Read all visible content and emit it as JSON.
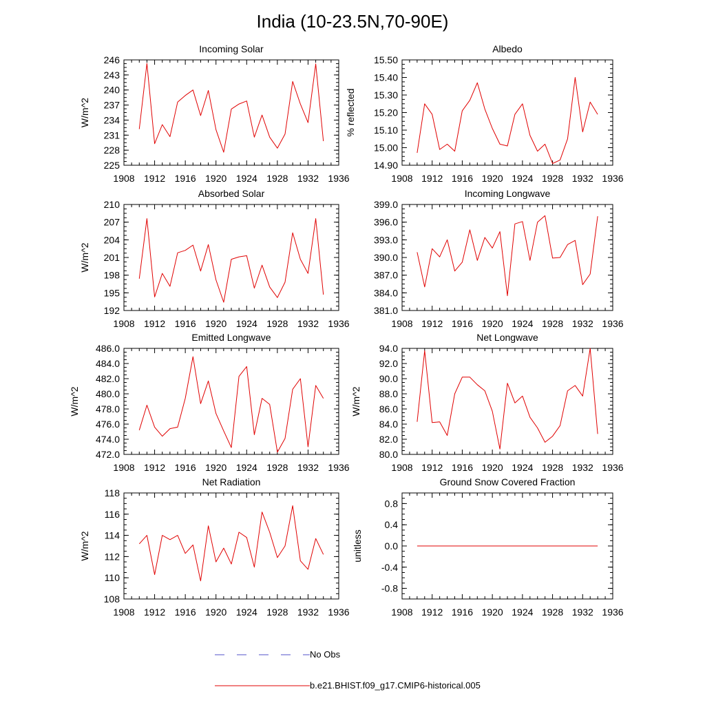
{
  "title": "India (10-23.5N,70-90E)",
  "colors": {
    "model": "#e00000",
    "obs": "#5050c8",
    "axis": "#000000"
  },
  "legend": {
    "items": [
      {
        "label": "No Obs",
        "color": "#5050c8",
        "style": "dashed"
      },
      {
        "label": "b.e21.BHIST.f09_g17.CMIP6-historical.005",
        "color": "#e00000",
        "style": "solid"
      }
    ]
  },
  "chart_data": [
    {
      "type": "line",
      "title": "Incoming Solar",
      "xlabel": "",
      "ylabel": "W/m^2",
      "xlim": [
        1908,
        1936
      ],
      "ylim": [
        225,
        246
      ],
      "x_ticks": [
        "1908",
        "1912",
        "1916",
        "1920",
        "1924",
        "1928",
        "1932",
        "1936"
      ],
      "y_ticks": [
        "225",
        "228",
        "231",
        "234",
        "237",
        "240",
        "243",
        "246"
      ],
      "series": [
        {
          "name": "b.e21.BHIST.f09_g17.CMIP6-historical.005",
          "x": [
            1910,
            1911,
            1912,
            1913,
            1914,
            1915,
            1916,
            1917,
            1918,
            1919,
            1920,
            1921,
            1922,
            1923,
            1924,
            1925,
            1926,
            1927,
            1928,
            1929,
            1930,
            1931,
            1932,
            1933,
            1934
          ],
          "values": [
            232.2,
            245.3,
            229.3,
            233.1,
            230.7,
            237.6,
            238.9,
            240.0,
            234.9,
            239.9,
            232.1,
            227.6,
            236.2,
            237.2,
            237.8,
            230.6,
            235.0,
            230.6,
            228.4,
            231.2,
            241.7,
            237.2,
            233.5,
            245.2,
            229.8
          ]
        }
      ]
    },
    {
      "type": "line",
      "title": "Albedo",
      "xlabel": "",
      "ylabel": "% reflected",
      "xlim": [
        1908,
        1936
      ],
      "ylim": [
        14.9,
        15.5
      ],
      "x_ticks": [
        "1908",
        "1912",
        "1916",
        "1920",
        "1924",
        "1928",
        "1932",
        "1936"
      ],
      "y_ticks": [
        "14.90",
        "15.00",
        "15.10",
        "15.20",
        "15.30",
        "15.40",
        "15.50"
      ],
      "series": [
        {
          "name": "b.e21.BHIST.f09_g17.CMIP6-historical.005",
          "x": [
            1910,
            1911,
            1912,
            1913,
            1914,
            1915,
            1916,
            1917,
            1918,
            1919,
            1920,
            1921,
            1922,
            1923,
            1924,
            1925,
            1926,
            1927,
            1928,
            1929,
            1930,
            1931,
            1932,
            1933,
            1934
          ],
          "values": [
            14.97,
            15.25,
            15.19,
            14.99,
            15.02,
            14.98,
            15.21,
            15.27,
            15.37,
            15.22,
            15.11,
            15.02,
            15.01,
            15.19,
            15.25,
            15.07,
            14.98,
            15.02,
            14.91,
            14.93,
            15.05,
            15.4,
            15.09,
            15.26,
            15.19
          ]
        }
      ]
    },
    {
      "type": "line",
      "title": "Absorbed Solar",
      "xlabel": "",
      "ylabel": "W/m^2",
      "xlim": [
        1908,
        1936
      ],
      "ylim": [
        192,
        210
      ],
      "x_ticks": [
        "1908",
        "1912",
        "1916",
        "1920",
        "1924",
        "1928",
        "1932",
        "1936"
      ],
      "y_ticks": [
        "192",
        "195",
        "198",
        "201",
        "204",
        "207",
        "210"
      ],
      "series": [
        {
          "name": "b.e21.BHIST.f09_g17.CMIP6-historical.005",
          "x": [
            1910,
            1911,
            1912,
            1913,
            1914,
            1915,
            1916,
            1917,
            1918,
            1919,
            1920,
            1921,
            1922,
            1923,
            1924,
            1925,
            1926,
            1927,
            1928,
            1929,
            1930,
            1931,
            1932,
            1933,
            1934
          ],
          "values": [
            197.4,
            207.6,
            194.3,
            198.3,
            196.1,
            201.8,
            202.2,
            203.1,
            198.7,
            203.2,
            197.2,
            193.4,
            200.7,
            201.1,
            201.3,
            195.8,
            199.7,
            196.0,
            194.2,
            196.8,
            205.2,
            200.7,
            198.3,
            207.6,
            194.7
          ]
        }
      ]
    },
    {
      "type": "line",
      "title": "Incoming Longwave",
      "xlabel": "",
      "ylabel": "",
      "xlim": [
        1908,
        1936
      ],
      "ylim": [
        381,
        399
      ],
      "x_ticks": [
        "1908",
        "1912",
        "1916",
        "1920",
        "1924",
        "1928",
        "1932",
        "1936"
      ],
      "y_ticks": [
        "381.0",
        "384.0",
        "387.0",
        "390.0",
        "393.0",
        "396.0",
        "399.0"
      ],
      "series": [
        {
          "name": "b.e21.BHIST.f09_g17.CMIP6-historical.005",
          "x": [
            1910,
            1911,
            1912,
            1913,
            1914,
            1915,
            1916,
            1917,
            1918,
            1919,
            1920,
            1921,
            1922,
            1923,
            1924,
            1925,
            1926,
            1927,
            1928,
            1929,
            1930,
            1931,
            1932,
            1933,
            1934
          ],
          "values": [
            390.9,
            385.0,
            391.5,
            390.1,
            393.0,
            387.7,
            389.2,
            394.7,
            389.5,
            393.4,
            391.6,
            394.4,
            383.5,
            395.7,
            396.1,
            389.5,
            396.0,
            397.1,
            389.9,
            390.0,
            392.2,
            392.9,
            385.4,
            387.2,
            397.0
          ]
        }
      ]
    },
    {
      "type": "line",
      "title": "Emitted Longwave",
      "xlabel": "",
      "ylabel": "W/m^2",
      "xlim": [
        1908,
        1936
      ],
      "ylim": [
        472,
        486
      ],
      "x_ticks": [
        "1908",
        "1912",
        "1916",
        "1920",
        "1924",
        "1928",
        "1932",
        "1936"
      ],
      "y_ticks": [
        "472.0",
        "474.0",
        "476.0",
        "478.0",
        "480.0",
        "482.0",
        "484.0",
        "486.0"
      ],
      "series": [
        {
          "name": "b.e21.BHIST.f09_g17.CMIP6-historical.005",
          "x": [
            1910,
            1911,
            1912,
            1913,
            1914,
            1915,
            1916,
            1917,
            1918,
            1919,
            1920,
            1921,
            1922,
            1923,
            1924,
            1925,
            1926,
            1927,
            1928,
            1929,
            1930,
            1931,
            1932,
            1933,
            1934
          ],
          "values": [
            475.2,
            478.5,
            475.6,
            474.4,
            475.4,
            475.6,
            479.4,
            484.9,
            478.7,
            481.7,
            477.4,
            475.1,
            472.9,
            482.3,
            483.6,
            474.6,
            479.4,
            478.6,
            472.3,
            474.1,
            480.6,
            482.0,
            473.0,
            481.1,
            479.4
          ]
        }
      ]
    },
    {
      "type": "line",
      "title": "Net Longwave",
      "xlabel": "",
      "ylabel": "W/m^2",
      "xlim": [
        1908,
        1936
      ],
      "ylim": [
        80,
        94
      ],
      "x_ticks": [
        "1908",
        "1912",
        "1916",
        "1920",
        "1924",
        "1928",
        "1932",
        "1936"
      ],
      "y_ticks": [
        "80.0",
        "82.0",
        "84.0",
        "86.0",
        "88.0",
        "90.0",
        "92.0",
        "94.0"
      ],
      "series": [
        {
          "name": "b.e21.BHIST.f09_g17.CMIP6-historical.005",
          "x": [
            1910,
            1911,
            1912,
            1913,
            1914,
            1915,
            1916,
            1917,
            1918,
            1919,
            1920,
            1921,
            1922,
            1923,
            1924,
            1925,
            1926,
            1927,
            1928,
            1929,
            1930,
            1931,
            1932,
            1933,
            1934
          ],
          "values": [
            84.3,
            93.7,
            84.2,
            84.3,
            82.5,
            88.0,
            90.2,
            90.2,
            89.2,
            88.4,
            85.7,
            80.7,
            89.4,
            86.8,
            87.7,
            84.9,
            83.5,
            81.6,
            82.4,
            83.8,
            88.4,
            89.1,
            87.7,
            94.0,
            82.7
          ]
        }
      ]
    },
    {
      "type": "line",
      "title": "Net Radiation",
      "xlabel": "",
      "ylabel": "W/m^2",
      "xlim": [
        1908,
        1936
      ],
      "ylim": [
        108,
        118
      ],
      "x_ticks": [
        "1908",
        "1912",
        "1916",
        "1920",
        "1924",
        "1928",
        "1932",
        "1936"
      ],
      "y_ticks": [
        "108",
        "110",
        "112",
        "114",
        "116",
        "118"
      ],
      "series": [
        {
          "name": "b.e21.BHIST.f09_g17.CMIP6-historical.005",
          "x": [
            1910,
            1911,
            1912,
            1913,
            1914,
            1915,
            1916,
            1917,
            1918,
            1919,
            1920,
            1921,
            1922,
            1923,
            1924,
            1925,
            1926,
            1927,
            1928,
            1929,
            1930,
            1931,
            1932,
            1933,
            1934
          ],
          "values": [
            113.2,
            114.0,
            110.3,
            114.0,
            113.6,
            114.0,
            112.3,
            113.1,
            109.7,
            114.9,
            111.5,
            112.8,
            111.3,
            114.3,
            113.8,
            111.0,
            116.2,
            114.3,
            111.9,
            113.0,
            116.8,
            111.6,
            110.8,
            113.7,
            112.2
          ]
        }
      ]
    },
    {
      "type": "line",
      "title": "Ground Snow Covered Fraction",
      "xlabel": "",
      "ylabel": "unitless",
      "xlim": [
        1908,
        1936
      ],
      "ylim": [
        -1.0,
        1.0
      ],
      "x_ticks": [
        "1908",
        "1912",
        "1916",
        "1920",
        "1924",
        "1928",
        "1932",
        "1936"
      ],
      "y_ticks": [
        "-0.8",
        "-0.4",
        "0.0",
        "0.4",
        "0.8"
      ],
      "series": [
        {
          "name": "b.e21.BHIST.f09_g17.CMIP6-historical.005",
          "x": [
            1910,
            1911,
            1912,
            1913,
            1914,
            1915,
            1916,
            1917,
            1918,
            1919,
            1920,
            1921,
            1922,
            1923,
            1924,
            1925,
            1926,
            1927,
            1928,
            1929,
            1930,
            1931,
            1932,
            1933,
            1934
          ],
          "values": [
            0,
            0,
            0,
            0,
            0,
            0,
            0,
            0,
            0,
            0,
            0,
            0,
            0,
            0,
            0,
            0,
            0,
            0,
            0,
            0,
            0,
            0,
            0,
            0,
            0
          ]
        }
      ]
    }
  ]
}
